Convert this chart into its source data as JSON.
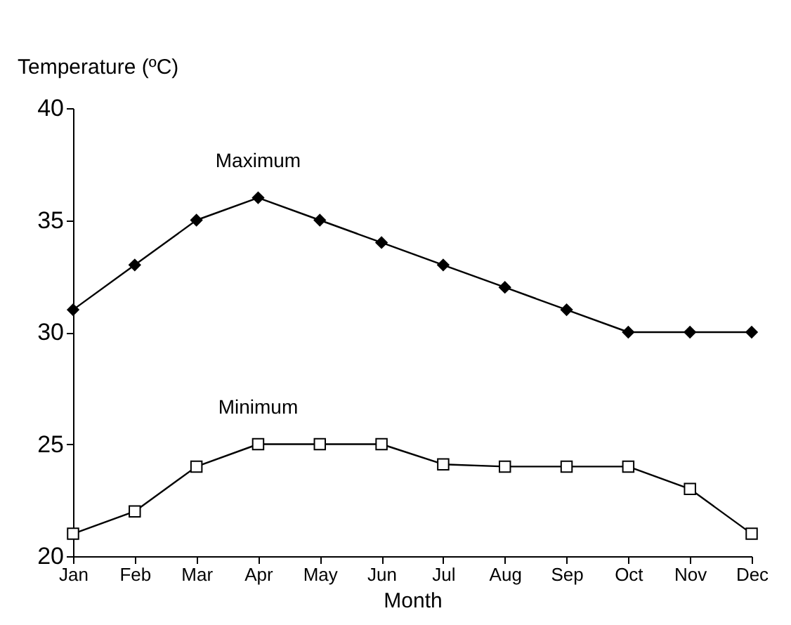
{
  "chart_data": {
    "type": "line",
    "categories": [
      "Jan",
      "Feb",
      "Mar",
      "Apr",
      "May",
      "Jun",
      "Jul",
      "Aug",
      "Sep",
      "Oct",
      "Nov",
      "Dec"
    ],
    "series": [
      {
        "name": "Maximum",
        "color": "#000000",
        "marker": "diamond",
        "values": [
          31,
          33,
          35,
          36,
          35,
          34,
          33,
          32,
          31,
          30,
          30,
          30
        ]
      },
      {
        "name": "Minimum",
        "color": "#000000",
        "marker": "square",
        "values": [
          21,
          22,
          24,
          25,
          25,
          25,
          24.1,
          24,
          24,
          24,
          23,
          21
        ]
      }
    ],
    "xlabel": "Month",
    "ylabel": "Temperature (ºC)",
    "ylim": [
      20,
      40
    ],
    "yticks": [
      20,
      25,
      30,
      35,
      40
    ],
    "grid": false,
    "legend": false,
    "line_style": "solid"
  }
}
